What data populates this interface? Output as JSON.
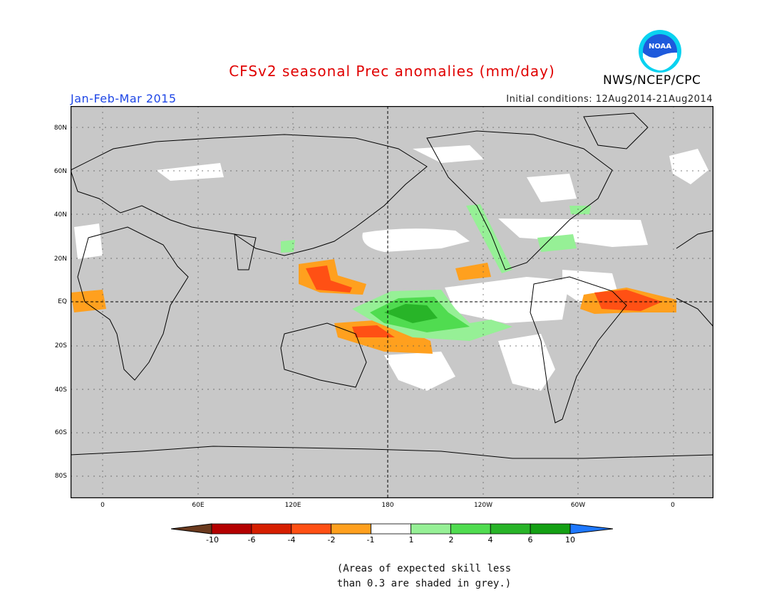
{
  "header": {
    "title": "CFSv2 seasonal Prec anomalies (mm/day)",
    "period": "Jan-Feb-Mar 2015",
    "initial_conditions": "Initial conditions: 12Aug2014-21Aug2014",
    "organization": "NWS/NCEP/CPC",
    "logo_text": "NOAA"
  },
  "map": {
    "projection": "cylindrical equidistant",
    "background_color": "#c8c8c8",
    "lat_labels": [
      "80N",
      "60N",
      "40N",
      "20N",
      "EQ",
      "20S",
      "40S",
      "60S",
      "80S"
    ],
    "lon_labels": [
      "0",
      "60E",
      "120E",
      "180",
      "120W",
      "60W",
      "0"
    ],
    "gridlines": "dotted"
  },
  "legend": {
    "colors": [
      "#6b3a1e",
      "#b40000",
      "#d61e00",
      "#ff5014",
      "#ffa01e",
      "#ffffff",
      "#96f096",
      "#50dc50",
      "#28b428",
      "#14a014",
      "#1e78ff"
    ],
    "labels": [
      "-10",
      "-6",
      "-4",
      "-2",
      "-1",
      "1",
      "2",
      "4",
      "6",
      "10"
    ]
  },
  "footnote": {
    "line1": "(Areas of expected skill less",
    "line2": "than 0.3 are shaded in grey.)"
  }
}
